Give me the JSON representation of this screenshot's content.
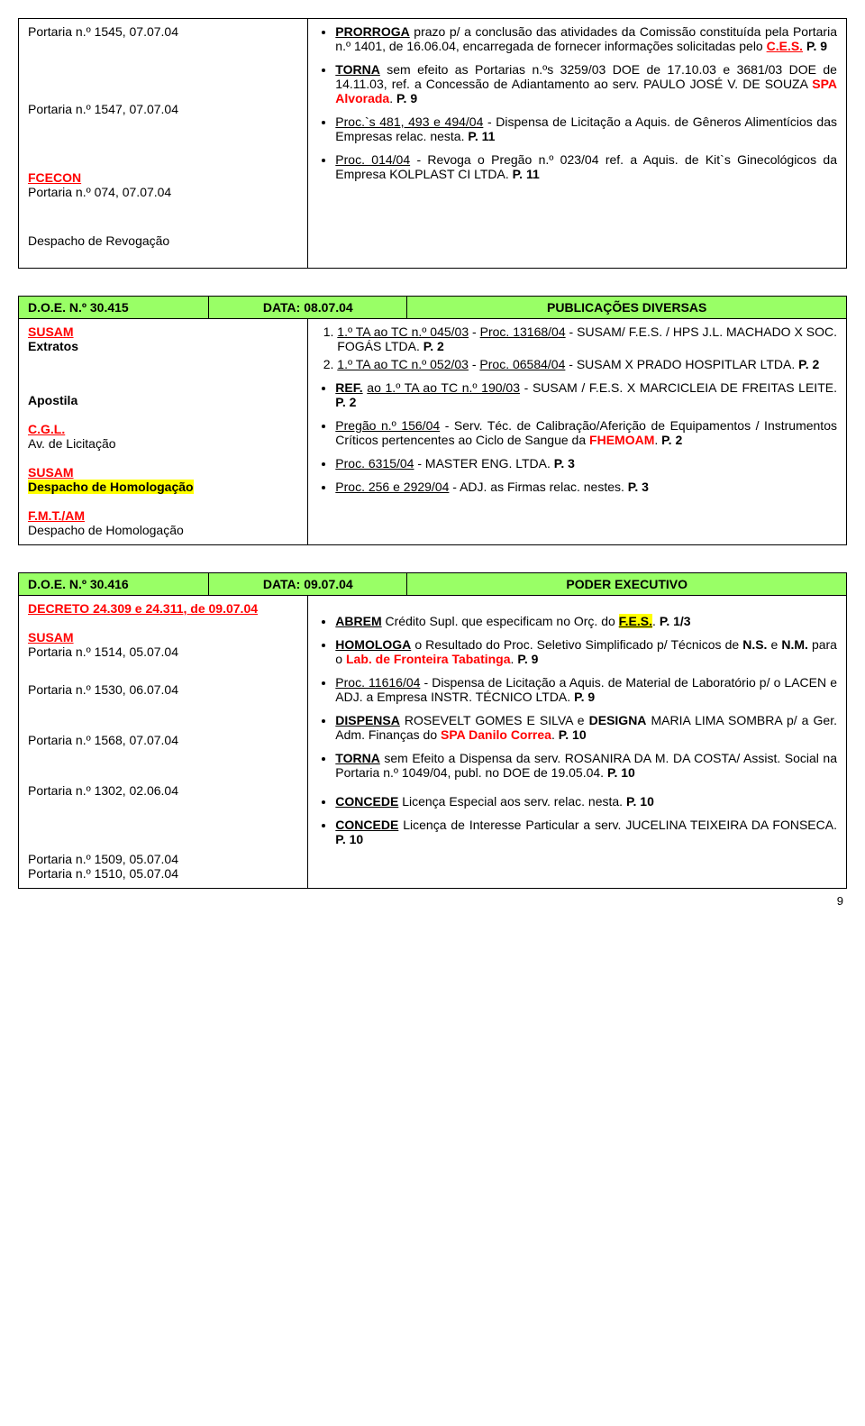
{
  "colors": {
    "highlight_yellow": "#ffff00",
    "highlight_green": "#99ff66",
    "red": "#ff0000",
    "black": "#000000",
    "white": "#ffffff"
  },
  "box1": {
    "left": [
      {
        "plain": "Portaria n.º 1545, 07.07.04"
      },
      {
        "plain": "Portaria n.º 1547, 07.07.04"
      },
      {
        "bold_red": "FCECON",
        "plain": "Portaria n.º 074, 07.07.04"
      },
      {
        "plain": "Despacho de Revogação"
      }
    ],
    "right": [
      {
        "html": "<span class='b u'>PRORROGA</span> prazo p/ a conclusão das atividades da Comissão constituída pela Portaria n.º 1401, de 16.06.04, encarregada de fornecer informações solicitadas pelo <span class='b u red'>C.E.S.</span> <span class='b'>P. 9</span>"
      },
      {
        "html": "<span class='b u'>TORNA</span> sem efeito as Portarias n.ºs 3259/03  DOE de 17.10.03 e 3681/03  DOE de 14.11.03, ref. a Concessão de Adiantamento ao serv. PAULO JOSÉ V. DE SOUZA <span class='b red'>SPA Alvorada</span>. <span class='b'>P. 9</span>"
      },
      {
        "html": "<span class='u'>Proc.`s 481, 493 e 494/04</span> - Dispensa de Licitação a Aquis. de Gêneros Alimentícios das Empresas relac. nesta. <span class='b'>P. 11</span>"
      },
      {
        "html": "<span class='u'>Proc. 014/04</span> - Revoga o Pregão n.º 023/04 ref. a Aquis. de Kit`s Ginecológicos da Empresa KOLPLAST CI LTDA. <span class='b'>P. 11</span>"
      }
    ]
  },
  "box2": {
    "header": {
      "l": "D.O.E. N.º 30.415",
      "c": "DATA: 08.07.04",
      "r": "PUBLICAÇÕES DIVERSAS"
    },
    "left": [
      {
        "red_u": "SUSAM",
        "plain_b": "Extratos"
      },
      {
        "plain_b": "Apostila"
      },
      {
        "red_u": "C.G.L.",
        "plain": "Av. de Licitação"
      },
      {
        "red_u": "SUSAM",
        "hl_b": "Despacho de Homologação"
      },
      {
        "red_u": "F.M.T./AM",
        "plain": "Despacho de Homologação"
      }
    ],
    "ol": [
      "<span class='u'>1.º TA ao TC n.º 045/03</span> - <span class='u'>Proc. 13168/04</span> - SUSAM/ F.E.S. / HPS J.L. MACHADO X SOC. FOGÁS LTDA. <span class='b'>P. 2</span>",
      "<span class='u'>1.º TA ao TC n.º 052/03</span> - <span class='u'>Proc. 06584/04</span> - SUSAM X PRADO HOSPITLAR LTDA. <span class='b'>P. 2</span>"
    ],
    "right": [
      {
        "html": "<span class='b u'>REF.</span> <span class='u'>ao 1.º TA ao TC n.º 190/03</span> - SUSAM / F.E.S. X MARCICLEIA DE FREITAS LEITE. <span class='b'>P. 2</span>"
      },
      {
        "html": "<span class='u'>Pregão n.º 156/04</span> - Serv. Téc. de Calibração/Aferição de Equipamentos / Instrumentos Críticos pertencentes ao Ciclo de Sangue da <span class='b red'>FHEMOAM</span>. <span class='b'>P. 2</span>"
      },
      {
        "html": "<span class='u'>Proc. 6315/04</span> - MASTER ENG. LTDA. <span class='b'>P. 3</span>"
      },
      {
        "html": "<span class='u'>Proc. 256 e 2929/04</span> - ADJ. as Firmas relac. nestes. <span class='b'>P. 3</span>"
      }
    ]
  },
  "box3": {
    "header": {
      "l": "D.O.E. N.º 30.416",
      "c": "DATA: 09.07.04",
      "r": "PODER EXECUTIVO"
    },
    "left": [
      {
        "red_u_b": "DECRETO 24.309 e 24.311, de 09.07.04"
      },
      {
        "red_u": "SUSAM",
        "plain": "Portaria n.º 1514, 05.07.04"
      },
      {
        "plain": "Portaria n.º 1530, 06.07.04"
      },
      {
        "plain": "Portaria n.º 1568, 07.07.04"
      },
      {
        "plain": "Portaria n.º 1302, 02.06.04"
      },
      {
        "plain": "Portaria n.º 1509, 05.07.04"
      },
      {
        "plain_last": "Portaria n.º 1510, 05.07.04"
      }
    ],
    "right": [
      {
        "html": "<span class='b u'>ABREM</span> Crédito Supl. que especificam no Orç. do <span class='b u hl-y'>F.E.S.</span>. <span class='b'>P. 1/3</span>"
      },
      {
        "html": "<span class='b u'>HOMOLOGA</span> o Resultado do Proc. Seletivo Simplificado p/ Técnicos de <span class='b'>N.S.</span> e <span class='b'>N.M.</span> para o <span class='b red'>Lab. de Fronteira Tabatinga</span>. <span class='b'>P. 9</span>"
      },
      {
        "html": "<span class='u'>Proc. 11616/04</span> - Dispensa de Licitação a Aquis. de Material de Laboratório p/ o LACEN e ADJ. a Empresa INSTR. TÉCNICO LTDA. <span class='b'>P. 9</span>"
      },
      {
        "html": "<span class='b u'>DISPENSA</span> ROSEVELT GOMES E SILVA e <span class='b'>DESIGNA</span> MARIA LIMA SOMBRA p/ a Ger. Adm. Finanças do <span class='b red'>SPA Danilo Correa</span>. <span class='b'>P. 10</span>"
      },
      {
        "html": "<span class='b u'>TORNA</span> sem Efeito a Dispensa da serv. ROSANIRA DA M. DA COSTA/ Assist. Social na Portaria n.º 1049/04, publ. no DOE de 19.05.04. <span class='b'>P. 10</span>"
      },
      {
        "html": "<span class='b u'>CONCEDE</span> Licença Especial aos serv. relac. nesta. <span class='b'>P. 10</span>"
      },
      {
        "html": "<span class='b u'>CONCEDE</span> Licença de Interesse Particular a serv. JUCELINA TEIXEIRA DA FONSECA. <span class='b'>P. 10</span>"
      }
    ]
  },
  "page_number": "9"
}
